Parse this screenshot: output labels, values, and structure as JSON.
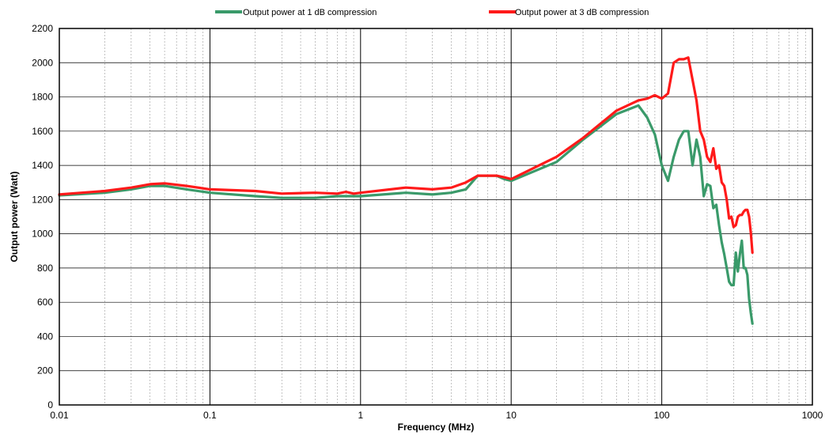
{
  "chart_data": {
    "type": "line",
    "title": "",
    "xlabel": "Frequency  (MHz)",
    "ylabel": "Output power (Watt)",
    "xscale": "log",
    "xlim": [
      0.01,
      1000
    ],
    "ylim": [
      0,
      2200
    ],
    "x_ticks": [
      "0.01",
      "0.1",
      "1",
      "10",
      "100",
      "1000"
    ],
    "y_ticks": [
      "0",
      "200",
      "400",
      "600",
      "800",
      "1000",
      "1200",
      "1400",
      "1600",
      "1800",
      "2000",
      "2200"
    ],
    "grid": true,
    "legend_position": "top-center",
    "series": [
      {
        "name": "Output power at 1 dB compression",
        "color": "#3a9a6a",
        "x": [
          0.01,
          0.02,
          0.03,
          0.04,
          0.05,
          0.07,
          0.1,
          0.2,
          0.3,
          0.5,
          0.7,
          1,
          2,
          3,
          4,
          5,
          6,
          7,
          8,
          9,
          10,
          20,
          30,
          50,
          70,
          80,
          90,
          100,
          110,
          120,
          130,
          140,
          150,
          160,
          170,
          180,
          190,
          200,
          210,
          220,
          230,
          240,
          250,
          260,
          270,
          280,
          290,
          300,
          310,
          320,
          330,
          340,
          350,
          360,
          370,
          380,
          390,
          400
        ],
        "y": [
          1225,
          1240,
          1260,
          1280,
          1280,
          1260,
          1240,
          1220,
          1210,
          1210,
          1220,
          1220,
          1240,
          1230,
          1240,
          1260,
          1340,
          1340,
          1340,
          1320,
          1310,
          1420,
          1550,
          1700,
          1750,
          1680,
          1580,
          1400,
          1310,
          1450,
          1550,
          1600,
          1600,
          1400,
          1550,
          1450,
          1220,
          1290,
          1280,
          1150,
          1170,
          1050,
          950,
          880,
          800,
          720,
          700,
          700,
          890,
          780,
          880,
          960,
          800,
          800,
          760,
          620,
          540,
          475
        ]
      },
      {
        "name": "Output power at 3 dB compression",
        "color": "#ff1a1a",
        "x": [
          0.01,
          0.02,
          0.03,
          0.04,
          0.05,
          0.07,
          0.1,
          0.2,
          0.3,
          0.5,
          0.7,
          0.8,
          0.9,
          1,
          2,
          3,
          4,
          5,
          6,
          7,
          8,
          9,
          10,
          20,
          30,
          50,
          70,
          80,
          90,
          100,
          110,
          120,
          130,
          140,
          150,
          160,
          170,
          180,
          190,
          200,
          210,
          220,
          230,
          240,
          250,
          260,
          270,
          280,
          290,
          300,
          310,
          320,
          330,
          340,
          350,
          360,
          370,
          380,
          390,
          400
        ],
        "y": [
          1230,
          1250,
          1270,
          1290,
          1295,
          1280,
          1260,
          1250,
          1235,
          1240,
          1235,
          1245,
          1235,
          1240,
          1270,
          1260,
          1270,
          1300,
          1340,
          1340,
          1340,
          1330,
          1320,
          1450,
          1560,
          1720,
          1780,
          1790,
          1810,
          1790,
          1820,
          2000,
          2020,
          2020,
          2030,
          1900,
          1780,
          1600,
          1550,
          1450,
          1420,
          1500,
          1380,
          1400,
          1300,
          1280,
          1200,
          1090,
          1100,
          1040,
          1050,
          1100,
          1110,
          1110,
          1130,
          1140,
          1140,
          1100,
          1010,
          890
        ]
      }
    ]
  }
}
